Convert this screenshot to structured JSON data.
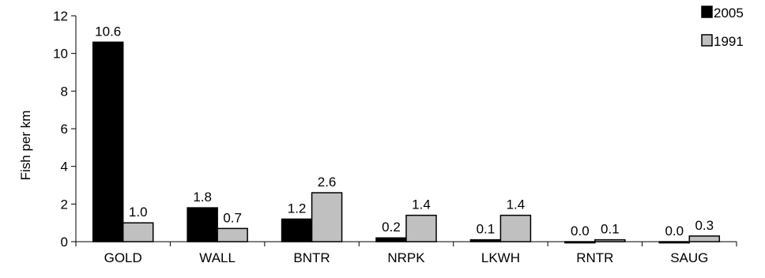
{
  "chart_data": {
    "type": "bar",
    "ylabel": "Fish per km",
    "ylim": [
      0,
      12
    ],
    "yticks": [
      "0",
      "2",
      "4",
      "6",
      "8",
      "10",
      "12"
    ],
    "categories": [
      "GOLD",
      "WALL",
      "BNTR",
      "NRPK",
      "LKWH",
      "RNTR",
      "SAUG"
    ],
    "series": [
      {
        "name": "2005",
        "color": "#000000",
        "values": [
          10.6,
          1.8,
          1.2,
          0.2,
          0.1,
          0.0,
          0.0
        ],
        "labels": [
          "10.6",
          "1.8",
          "1.2",
          "0.2",
          "0.1",
          "0.0",
          "0.0"
        ]
      },
      {
        "name": "1991",
        "color": "#c0c0c0",
        "values": [
          1.0,
          0.7,
          2.6,
          1.4,
          1.4,
          0.1,
          0.3
        ],
        "labels": [
          "1.0",
          "0.7",
          "2.6",
          "1.4",
          "1.4",
          "0.1",
          "0.3"
        ]
      }
    ],
    "legend": "top-right",
    "grid": false
  }
}
